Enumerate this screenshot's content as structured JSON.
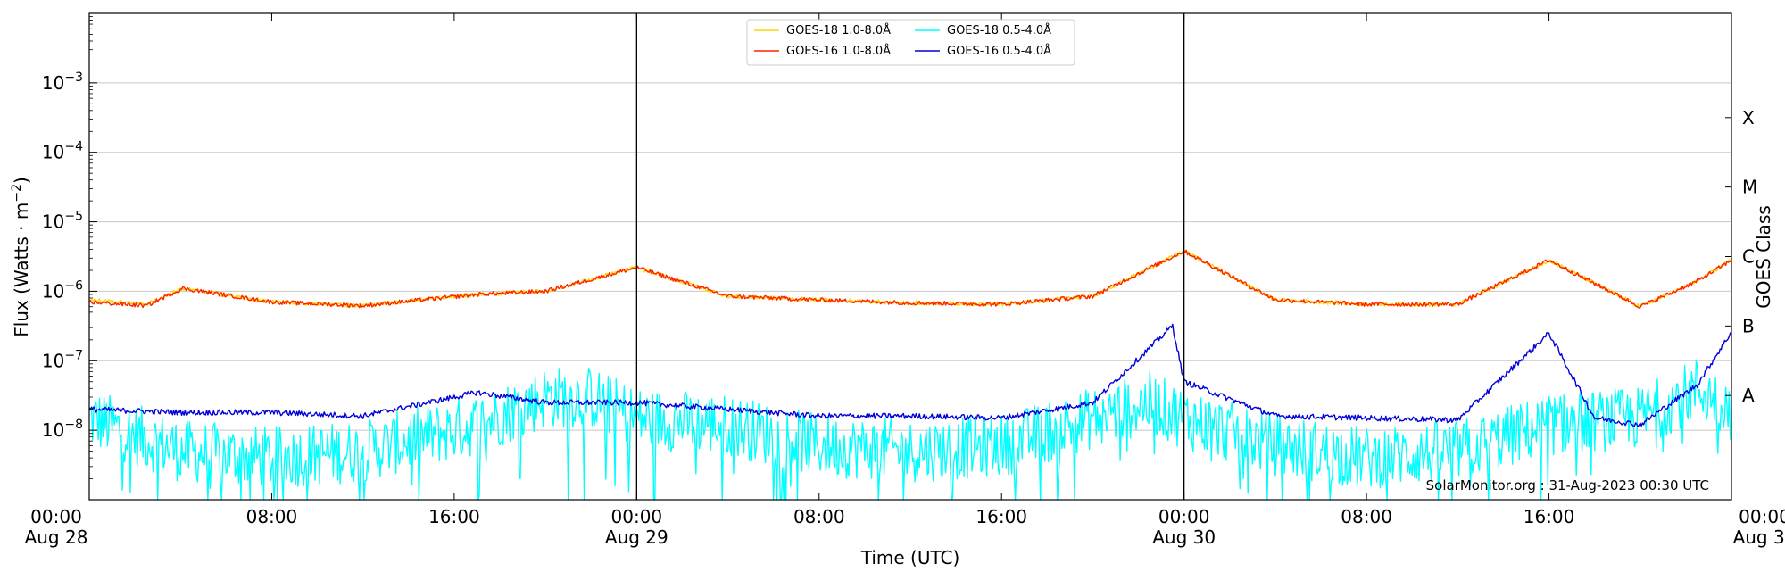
{
  "chart_data": {
    "type": "line",
    "xlabel": "Time (UTC)",
    "ylabel": "Flux (Watts · m",
    "ylabel_superscript": "−2",
    "ylabel_close": ")",
    "right_axis_label": "GOES Class",
    "credit": "SolarMonitor.org : 31-Aug-2023 00:30 UTC",
    "y_scale": "log",
    "ylim": [
      1e-09,
      0.01
    ],
    "xlim_hours": [
      0,
      72
    ],
    "grid": "horizontal",
    "legend_position": "top-center",
    "x_ticks": [
      {
        "hour": 0,
        "time": "00:00",
        "date": "Aug 28"
      },
      {
        "hour": 8,
        "time": "08:00",
        "date": ""
      },
      {
        "hour": 16,
        "time": "16:00",
        "date": ""
      },
      {
        "hour": 24,
        "time": "00:00",
        "date": "Aug 29"
      },
      {
        "hour": 32,
        "time": "08:00",
        "date": ""
      },
      {
        "hour": 40,
        "time": "16:00",
        "date": ""
      },
      {
        "hour": 48,
        "time": "00:00",
        "date": "Aug 30"
      },
      {
        "hour": 56,
        "time": "08:00",
        "date": ""
      },
      {
        "hour": 64,
        "time": "16:00",
        "date": ""
      },
      {
        "hour": 72,
        "time": "00:00",
        "date": "Aug 31"
      }
    ],
    "day_boundaries_hours": [
      24,
      48
    ],
    "y_ticks": [
      {
        "exp": -8,
        "label": "10",
        "sup": "−8"
      },
      {
        "exp": -7,
        "label": "10",
        "sup": "−7"
      },
      {
        "exp": -6,
        "label": "10",
        "sup": "−6"
      },
      {
        "exp": -5,
        "label": "10",
        "sup": "−5"
      },
      {
        "exp": -4,
        "label": "10",
        "sup": "−4"
      },
      {
        "exp": -3,
        "label": "10",
        "sup": "−3"
      }
    ],
    "goes_classes": [
      {
        "label": "A",
        "exp": -7.5
      },
      {
        "label": "B",
        "exp": -6.5
      },
      {
        "label": "C",
        "exp": -5.5
      },
      {
        "label": "M",
        "exp": -4.5
      },
      {
        "label": "X",
        "exp": -3.5
      }
    ],
    "series": [
      {
        "name": "GOES-18 1.0-8.0Å",
        "color": "#ffd700",
        "baseline_exp": -6.15,
        "noise": 0.03,
        "x": [
          0,
          2.5,
          4.1,
          8,
          12,
          17,
          20,
          24,
          28,
          32,
          36,
          40,
          44,
          48,
          52,
          56,
          60,
          64,
          68,
          70.5,
          72
        ],
        "y": [
          7.5e-07,
          6.5e-07,
          1.1e-06,
          7e-07,
          6.2e-07,
          9e-07,
          1e-06,
          2.2e-06,
          8.5e-07,
          7.5e-07,
          6.8e-07,
          6.5e-07,
          8.5e-07,
          3.8e-06,
          7.5e-07,
          6.5e-07,
          6.5e-07,
          2.8e-06,
          6e-07,
          1.4e-06,
          2.8e-06
        ]
      },
      {
        "name": "GOES-16 1.0-8.0Å",
        "color": "#ff2200",
        "baseline_exp": -6.17,
        "noise": 0.03,
        "x": [
          0,
          2.5,
          4.1,
          8,
          12,
          17,
          20,
          24,
          28,
          32,
          36,
          40,
          44,
          48,
          52,
          56,
          60,
          64,
          68,
          70.5,
          72
        ],
        "y": [
          7e-07,
          6.2e-07,
          1.1e-06,
          7e-07,
          6.2e-07,
          9e-07,
          1e-06,
          2.2e-06,
          8.5e-07,
          7.5e-07,
          6.8e-07,
          6.5e-07,
          8.5e-07,
          3.8e-06,
          7.5e-07,
          6.5e-07,
          6.5e-07,
          2.8e-06,
          6e-07,
          1.4e-06,
          2.8e-06
        ]
      },
      {
        "name": "GOES-18 0.5-4.0Å",
        "color": "#00ffff",
        "baseline_exp": -8.6,
        "noise": 0.45,
        "x": [
          0,
          4,
          8,
          12,
          17,
          20,
          22,
          24,
          28,
          32,
          36,
          40,
          44,
          46.5,
          48,
          52,
          56,
          60,
          64,
          68,
          70.5,
          72
        ],
        "y": [
          1.5e-08,
          5e-09,
          4e-09,
          5e-09,
          1.2e-08,
          3e-08,
          3e-08,
          1.5e-08,
          1.2e-08,
          6e-09,
          5e-09,
          6e-09,
          1.5e-08,
          2.5e-08,
          1.5e-08,
          6e-09,
          4e-09,
          5e-09,
          1.2e-08,
          1.5e-08,
          4e-08,
          2e-08
        ]
      },
      {
        "name": "GOES-16 0.5-4.0Å",
        "color": "#0000dd",
        "baseline_exp": -7.75,
        "noise": 0.04,
        "x": [
          0,
          4,
          8,
          12,
          17,
          20,
          24,
          28,
          32,
          36,
          40,
          44,
          47.5,
          48,
          52,
          56,
          60,
          64,
          66,
          68,
          70.5,
          72
        ],
        "y": [
          2e-08,
          1.8e-08,
          1.8e-08,
          1.6e-08,
          3.5e-08,
          2.5e-08,
          2.5e-08,
          2e-08,
          1.6e-08,
          1.6e-08,
          1.5e-08,
          2.5e-08,
          3.2e-07,
          5e-08,
          1.6e-08,
          1.5e-08,
          1.4e-08,
          2.5e-07,
          1.5e-08,
          1.2e-08,
          4.5e-08,
          2.6e-07
        ]
      }
    ]
  }
}
